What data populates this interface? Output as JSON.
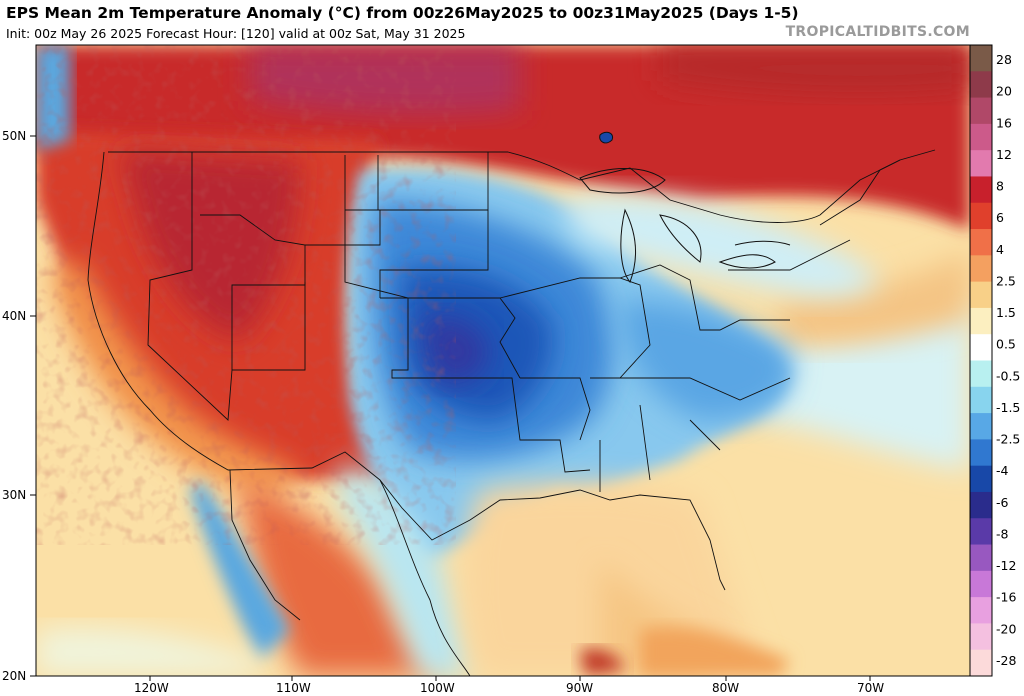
{
  "header": {
    "title": "EPS Mean 2m Temperature Anomaly (°C) from 00z26May2025 to 00z31May2025 (Days 1-5)",
    "subtitle": "Init: 00z May 26 2025   Forecast Hour: [120]   valid at 00z Sat, May 31 2025",
    "credit": "TROPICALTIDBITS.COM"
  },
  "map": {
    "region": "Continental United States",
    "lat_labels": [
      "50N",
      "40N",
      "30N",
      "20N"
    ],
    "lon_labels": [
      "120W",
      "110W",
      "100W",
      "90W",
      "80W",
      "70W"
    ]
  },
  "colorbar": {
    "labels": [
      "28",
      "20",
      "16",
      "12",
      "8",
      "6",
      "4",
      "2.5",
      "1.5",
      "0.5",
      "-0.5",
      "-1.5",
      "-2.5",
      "-4",
      "-6",
      "-8",
      "-12",
      "-16",
      "-20",
      "-28"
    ],
    "colors": [
      "#7a5a48",
      "#8e3a4a",
      "#b04868",
      "#cc5a8a",
      "#e27aae",
      "#c8202c",
      "#e0402c",
      "#f07048",
      "#f4a060",
      "#f8d088",
      "#fcefc0",
      "#ffffff",
      "#b8f0f0",
      "#88d4ee",
      "#58a8e6",
      "#3078d0",
      "#1848a8",
      "#2a2c8c",
      "#5a3aa8",
      "#9858c0",
      "#c878d8",
      "#e8a0e0",
      "#f4c0e0",
      "#fcdada"
    ]
  },
  "regions": {
    "west": "warm anomaly",
    "central_plains": "cold anomaly",
    "east": "cool anomaly",
    "gulf": "slight warm anomaly",
    "canada": "warm anomaly"
  }
}
